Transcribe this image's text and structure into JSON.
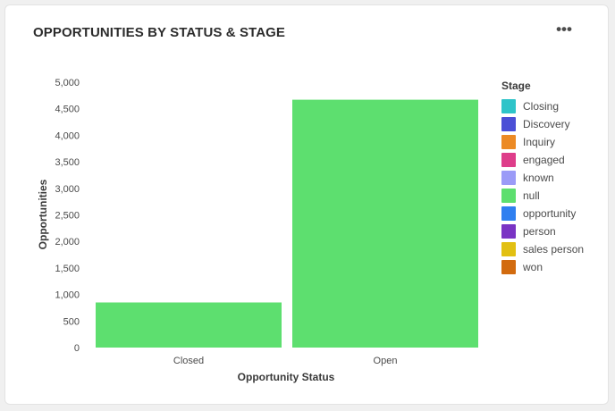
{
  "card": {
    "title": "OPPORTUNITIES BY STATUS & STAGE",
    "more_label": "•••",
    "more_icon": "more-horizontal-icon"
  },
  "chart_data": {
    "type": "bar",
    "categories": [
      "Closed",
      "Open"
    ],
    "series": [
      {
        "name": "null",
        "color": "#5ddf6f",
        "values": [
          850,
          4670
        ]
      }
    ],
    "xlabel": "Opportunity Status",
    "ylabel": "Opportunities",
    "ylim": [
      0,
      5000
    ],
    "yticks": [
      0,
      500,
      1000,
      1500,
      2000,
      2500,
      3000,
      3500,
      4000,
      4500,
      5000
    ],
    "ytick_labels": [
      "0",
      "500",
      "1,000",
      "1,500",
      "2,000",
      "2,500",
      "3,000",
      "3,500",
      "4,000",
      "4,500",
      "5,000"
    ],
    "grid": false,
    "legend": {
      "title": "Stage",
      "placement": "right",
      "entries": [
        {
          "label": "Closing",
          "color": "#2ec4c9"
        },
        {
          "label": "Discovery",
          "color": "#4b4fd6"
        },
        {
          "label": "Inquiry",
          "color": "#ec8a24"
        },
        {
          "label": "engaged",
          "color": "#de3d8a"
        },
        {
          "label": "known",
          "color": "#9b9bf7"
        },
        {
          "label": "null",
          "color": "#5ddf6f"
        },
        {
          "label": "opportunity",
          "color": "#2f7ff0"
        },
        {
          "label": "person",
          "color": "#7a34c4"
        },
        {
          "label": "sales person",
          "color": "#e2c012"
        },
        {
          "label": "won",
          "color": "#d26b0f"
        }
      ]
    }
  }
}
